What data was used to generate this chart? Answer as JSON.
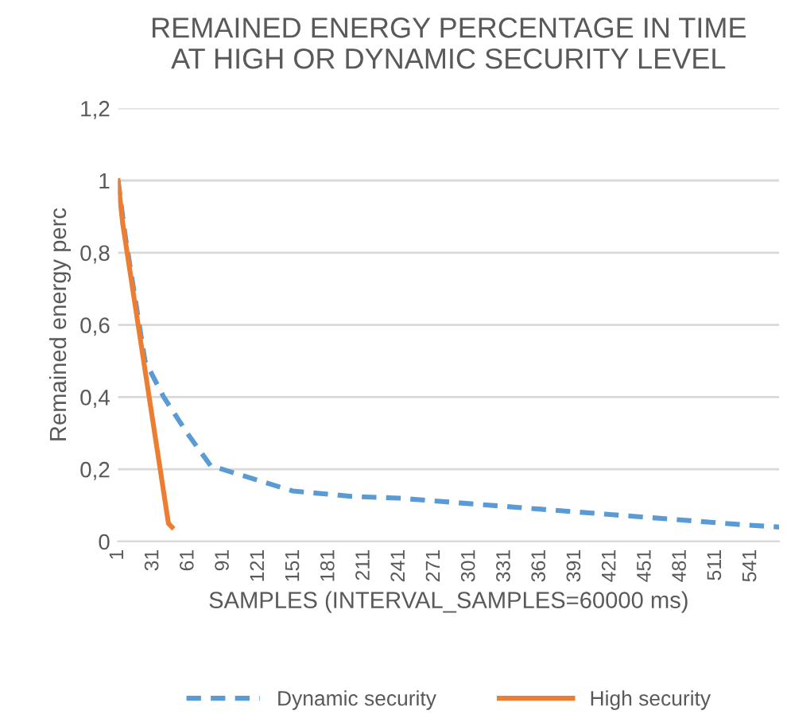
{
  "chart_data": {
    "type": "line",
    "title": "REMAINED ENERGY PERCENTAGE IN TIME\nAT HIGH OR DYNAMIC SECURITY LEVEL",
    "xlabel": "SAMPLES (INTERVAL_SAMPLES=60000 ms)",
    "ylabel": "Remained energy perc",
    "series": [
      {
        "name": "Dynamic security",
        "color": "#5b9bd5",
        "line_style": "dashed",
        "x": [
          1,
          7,
          24,
          40,
          60,
          80,
          100,
          150,
          200,
          241,
          300,
          360,
          420,
          480,
          540,
          565
        ],
        "values": [
          1,
          0.85,
          0.5,
          0.4,
          0.3,
          0.21,
          0.19,
          0.14,
          0.125,
          0.12,
          0.105,
          0.09,
          0.075,
          0.06,
          0.045,
          0.04
        ]
      },
      {
        "name": "High security",
        "color": "#ed7d31",
        "line_style": "solid",
        "x": [
          1,
          5,
          44,
          47
        ],
        "values": [
          1,
          0.88,
          0.05,
          0.04
        ]
      }
    ],
    "xlim": [
      1,
      565
    ],
    "xticks": [
      1,
      31,
      61,
      91,
      121,
      151,
      181,
      211,
      241,
      271,
      301,
      331,
      361,
      391,
      421,
      451,
      481,
      511,
      541
    ],
    "ylim": [
      0,
      1.2
    ],
    "yticks": [
      0,
      {
        "value": 0.2,
        "label": "0,2"
      },
      {
        "value": 0.4,
        "label": "0,4"
      },
      {
        "value": 0.6,
        "label": "0,6"
      },
      {
        "value": 0.8,
        "label": "0,8"
      },
      1,
      {
        "value": 1.2,
        "label": "1,2"
      }
    ],
    "grid": "y",
    "legend": "bottom",
    "marker": "none"
  }
}
